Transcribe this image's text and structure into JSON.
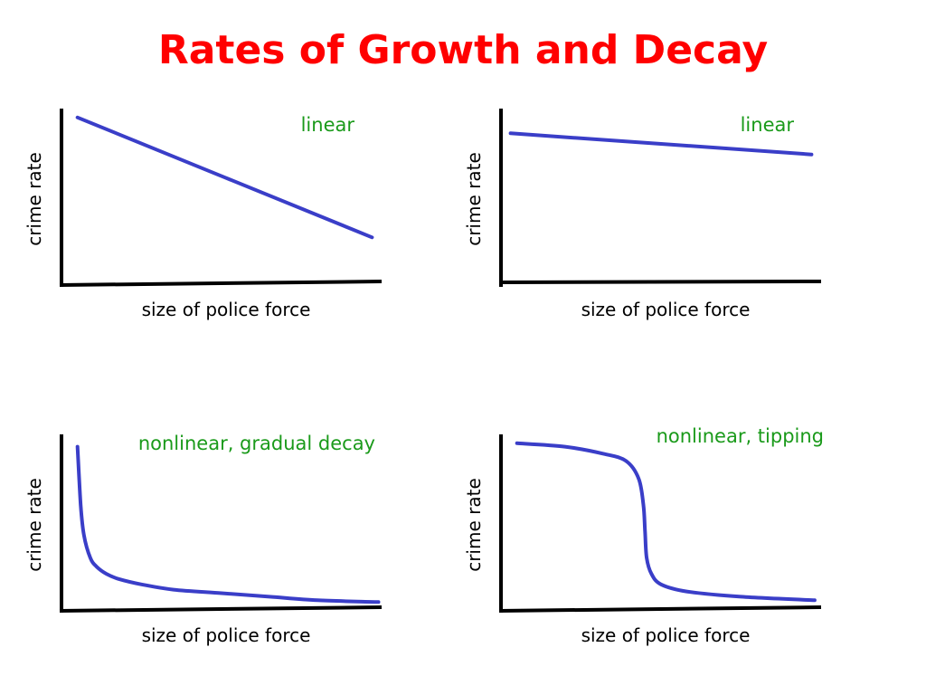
{
  "title": "Rates of Growth and Decay",
  "colors": {
    "title": "#ff0000",
    "curve": "#3a3ec8",
    "annotation": "#1a9a1a",
    "axis": "#000000",
    "text": "#000000"
  },
  "chart_data": [
    {
      "type": "line",
      "annotation": "linear",
      "xlabel": "size of police force",
      "ylabel": "crime rate",
      "xlim": [
        0,
        10
      ],
      "ylim": [
        0,
        10
      ],
      "series": [
        {
          "x": [
            0.5,
            9.7
          ],
          "y": [
            9.5,
            2.7
          ]
        }
      ]
    },
    {
      "type": "line",
      "annotation": "linear",
      "xlabel": "size of police force",
      "ylabel": "crime rate",
      "xlim": [
        0,
        10
      ],
      "ylim": [
        0,
        10
      ],
      "series": [
        {
          "x": [
            0.3,
            9.7
          ],
          "y": [
            8.6,
            7.4
          ]
        }
      ]
    },
    {
      "type": "line",
      "annotation": "nonlinear, gradual decay",
      "xlabel": "size of police force",
      "ylabel": "crime rate",
      "xlim": [
        0,
        10
      ],
      "ylim": [
        0,
        10
      ],
      "series": [
        {
          "x": [
            0.5,
            0.6,
            0.7,
            0.9,
            1.1,
            1.4,
            1.8,
            2.5,
            3.5,
            5.0,
            6.5,
            8.0,
            9.9
          ],
          "y": [
            9.3,
            6.0,
            4.3,
            3.0,
            2.5,
            2.1,
            1.8,
            1.5,
            1.2,
            1.0,
            0.8,
            0.6,
            0.5
          ]
        }
      ]
    },
    {
      "type": "line",
      "annotation": "nonlinear, tipping",
      "xlabel": "size of police force",
      "ylabel": "crime rate",
      "xlim": [
        0,
        10
      ],
      "ylim": [
        0,
        10
      ],
      "series": [
        {
          "x": [
            0.5,
            2.0,
            3.2,
            3.9,
            4.3,
            4.45,
            4.5,
            4.55,
            4.7,
            5.0,
            5.8,
            7.5,
            9.8
          ],
          "y": [
            9.5,
            9.3,
            8.9,
            8.5,
            7.5,
            6.0,
            4.5,
            3.0,
            2.1,
            1.5,
            1.1,
            0.8,
            0.6
          ]
        }
      ]
    }
  ]
}
